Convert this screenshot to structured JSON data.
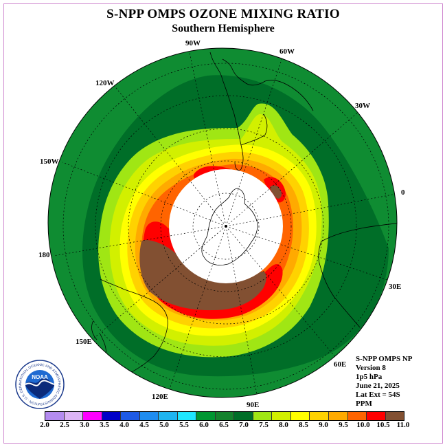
{
  "title": "S-NPP OMPS OZONE MIXING RATIO",
  "subtitle": "Southern Hemisphere",
  "longitude_labels": {
    "lon_90w": "90W",
    "lon_60w": "60W",
    "lon_120w": "120W",
    "lon_30w": "30W",
    "lon_150w": "150W",
    "lon_0": "0",
    "lon_180": "180",
    "lon_30e": "30E",
    "lon_150e": "150E",
    "lon_60e": "60E",
    "lon_120e": "120E",
    "lon_90e": "90E"
  },
  "info": {
    "line1": "S-NPP OMPS NP",
    "line2": "Version 8",
    "line3": "1p5 hPa",
    "line4": "June 21, 2025",
    "line5": "Lat Ext = 54S",
    "line6": "PPM"
  },
  "logo": {
    "label": "NOAA",
    "ring_text": "NATIONAL OCEANIC AND ATMOSPHERIC ADMINISTRATION · U.S. DEPARTMENT OF COMMERCE"
  },
  "colorbar": {
    "unit": "PPM",
    "ticks": [
      "2.0",
      "2.5",
      "3.0",
      "3.5",
      "4.0",
      "4.5",
      "5.0",
      "5.5",
      "6.0",
      "6.5",
      "7.0",
      "7.5",
      "8.0",
      "8.5",
      "9.0",
      "9.5",
      "10.0",
      "10.5",
      "11.0"
    ],
    "colors": [
      "#b48cf0",
      "#dcb4f5",
      "#ff00ff",
      "#0000c8",
      "#1e5ae6",
      "#1e8cf0",
      "#1eb4f0",
      "#1ee6ff",
      "#009632",
      "#14822d",
      "#006e28",
      "#a0e614",
      "#d2f000",
      "#ffff00",
      "#ffd200",
      "#ffaa00",
      "#ff6400",
      "#ff0000",
      "#825032"
    ]
  },
  "map_colors": {
    "background_green": "#0f8c32",
    "dark_green": "#006e28",
    "light_green": "#a0e614",
    "yellow_green": "#d2f000",
    "yellow": "#ffff00",
    "gold": "#ffd200",
    "orange": "#ffaa00",
    "dark_orange": "#ff6400",
    "red": "#ff0000",
    "brown": "#825032",
    "pole_mask": "#ffffff"
  }
}
